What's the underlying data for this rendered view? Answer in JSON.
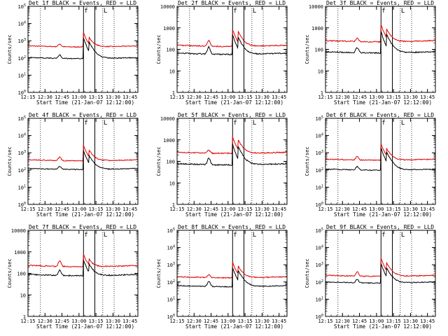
{
  "figure": {
    "shared_xlabel": "Start Time (21-Jan-07 12:12:00)",
    "ylabel": "Counts/sec",
    "colors": {
      "events": "#000000",
      "lld": "#e00000",
      "axes": "#000000",
      "background": "#ffffff"
    }
  },
  "chart_data": [
    {
      "type": "line",
      "title": "Det 1f BLACK = Events, RED = LLD",
      "xlabel": "Start Time (21-Jan-07 12:12:00)",
      "ylabel": "Counts/sec",
      "x_ticks": [
        "12:15",
        "12:30",
        "12:45",
        "13:00",
        "13:15",
        "13:30",
        "13:45"
      ],
      "xlim": [
        "12:15",
        "13:52"
      ],
      "yscale": "log",
      "ylim": [
        1,
        100000
      ],
      "y_tick_labels": [
        "10^0",
        "10^1",
        "10^2",
        "10^3",
        "10^4",
        "10^5"
      ],
      "y_tick_values": [
        1,
        10,
        100,
        1000,
        10000,
        100000
      ],
      "solid_vlines": [
        "13:04",
        "13:14"
      ],
      "dotted_vlines": [
        "12:26",
        "13:21",
        "13:31"
      ],
      "markers": {
        "f": "13:04",
        "L": "13:21"
      },
      "series": [
        {
          "color": "#e00000",
          "role": "LLD",
          "baseline": 450,
          "bump_1243": 650,
          "peak1": 3000,
          "peak2": 1300
        },
        {
          "color": "#000000",
          "role": "Events",
          "baseline": 95,
          "bump_1243": 150,
          "peak1": 1500,
          "peak2": 700
        }
      ]
    },
    {
      "type": "line",
      "title": "Det 2f BLACK = Events, RED = LLD",
      "xlabel": "Start Time (21-Jan-07 12:12:00)",
      "ylabel": "Counts/sec",
      "x_ticks": [
        "12:15",
        "12:30",
        "12:45",
        "13:00",
        "13:15",
        "13:30",
        "13:45"
      ],
      "xlim": [
        "12:15",
        "13:52"
      ],
      "yscale": "log",
      "ylim": [
        1,
        10000
      ],
      "y_tick_labels": [
        "1",
        "10",
        "100",
        "1000",
        "10000"
      ],
      "y_tick_values": [
        1,
        10,
        100,
        1000,
        10000
      ],
      "solid_vlines": [
        "13:04",
        "13:14"
      ],
      "dotted_vlines": [
        "12:26",
        "13:21",
        "13:31"
      ],
      "markers": {
        "f": "13:04",
        "L": "13:21"
      },
      "series": [
        {
          "color": "#e00000",
          "role": "LLD",
          "baseline": 140,
          "bump_1243": 260,
          "peak1": 900,
          "peak2": 600
        },
        {
          "color": "#000000",
          "role": "Events",
          "baseline": 60,
          "bump_1243": 130,
          "peak1": 500,
          "peak2": 330
        }
      ]
    },
    {
      "type": "line",
      "title": "Det 3f BLACK = Events, RED = LLD",
      "xlabel": "Start Time (21-Jan-07 12:12:00)",
      "ylabel": "Counts/sec",
      "x_ticks": [
        "12:15",
        "12:30",
        "12:45",
        "13:00",
        "13:15",
        "13:30",
        "13:45"
      ],
      "xlim": [
        "12:15",
        "13:52"
      ],
      "yscale": "log",
      "ylim": [
        1,
        10000
      ],
      "y_tick_labels": [
        "1",
        "10",
        "100",
        "1000",
        "10000"
      ],
      "y_tick_values": [
        1,
        10,
        100,
        1000,
        10000
      ],
      "solid_vlines": [
        "13:04",
        "13:14"
      ],
      "dotted_vlines": [
        "12:26",
        "13:21",
        "13:31"
      ],
      "markers": {
        "f": "13:04",
        "L": "13:21"
      },
      "series": [
        {
          "color": "#e00000",
          "role": "LLD",
          "baseline": 230,
          "bump_1243": 330,
          "peak1": 1500,
          "peak2": 800
        },
        {
          "color": "#000000",
          "role": "Events",
          "baseline": 70,
          "bump_1243": 120,
          "peak1": 700,
          "peak2": 450
        }
      ]
    },
    {
      "type": "line",
      "title": "Det 4f BLACK = Events, RED = LLD",
      "xlabel": "Start Time (21-Jan-07 12:12:00)",
      "ylabel": "Counts/sec",
      "x_ticks": [
        "12:15",
        "12:30",
        "12:45",
        "13:00",
        "13:15",
        "13:30",
        "13:45"
      ],
      "xlim": [
        "12:15",
        "13:52"
      ],
      "yscale": "log",
      "ylim": [
        1,
        100000
      ],
      "y_tick_labels": [
        "10^0",
        "10^1",
        "10^2",
        "10^3",
        "10^4",
        "10^5"
      ],
      "y_tick_values": [
        1,
        10,
        100,
        1000,
        10000,
        100000
      ],
      "solid_vlines": [
        "13:04",
        "13:14"
      ],
      "dotted_vlines": [
        "12:26",
        "13:21",
        "13:31"
      ],
      "markers": {
        "f": "13:04",
        "L": "13:21"
      },
      "series": [
        {
          "color": "#e00000",
          "role": "LLD",
          "baseline": 350,
          "bump_1243": 550,
          "peak1": 2800,
          "peak2": 1200
        },
        {
          "color": "#000000",
          "role": "Events",
          "baseline": 110,
          "bump_1243": 160,
          "peak1": 1400,
          "peak2": 600
        }
      ]
    },
    {
      "type": "line",
      "title": "Det 5f BLACK = Events, RED = LLD",
      "xlabel": "Start Time (21-Jan-07 12:12:00)",
      "ylabel": "Counts/sec",
      "x_ticks": [
        "12:15",
        "12:30",
        "12:45",
        "13:00",
        "13:15",
        "13:30",
        "13:45"
      ],
      "xlim": [
        "12:15",
        "13:52"
      ],
      "yscale": "log",
      "ylim": [
        1,
        10000
      ],
      "y_tick_labels": [
        "1",
        "10",
        "100",
        "1000",
        "10000"
      ],
      "y_tick_values": [
        1,
        10,
        100,
        1000,
        10000
      ],
      "solid_vlines": [
        "13:04",
        "13:14"
      ],
      "dotted_vlines": [
        "12:26",
        "13:21",
        "13:31"
      ],
      "markers": {
        "f": "13:04",
        "L": "13:21"
      },
      "series": [
        {
          "color": "#e00000",
          "role": "LLD",
          "baseline": 240,
          "bump_1243": 330,
          "peak1": 1500,
          "peak2": 900
        },
        {
          "color": "#000000",
          "role": "Events",
          "baseline": 70,
          "bump_1243": 140,
          "peak1": 650,
          "peak2": 450
        }
      ]
    },
    {
      "type": "line",
      "title": "Det 6f BLACK = Events, RED = LLD",
      "xlabel": "Start Time (21-Jan-07 12:12:00)",
      "ylabel": "Counts/sec",
      "x_ticks": [
        "12:15",
        "12:30",
        "12:45",
        "13:00",
        "13:15",
        "13:30",
        "13:45"
      ],
      "xlim": [
        "12:15",
        "13:52"
      ],
      "yscale": "log",
      "ylim": [
        1,
        100000
      ],
      "y_tick_labels": [
        "10^0",
        "10^1",
        "10^2",
        "10^3",
        "10^4",
        "10^5"
      ],
      "y_tick_values": [
        1,
        10,
        100,
        1000,
        10000,
        100000
      ],
      "solid_vlines": [
        "13:04",
        "13:14"
      ],
      "dotted_vlines": [
        "12:26",
        "13:21",
        "13:31"
      ],
      "markers": {
        "f": "13:04",
        "L": "13:21"
      },
      "series": [
        {
          "color": "#e00000",
          "role": "LLD",
          "baseline": 380,
          "bump_1243": 600,
          "peak1": 3500,
          "peak2": 1500
        },
        {
          "color": "#000000",
          "role": "Events",
          "baseline": 100,
          "bump_1243": 160,
          "peak1": 2000,
          "peak2": 900
        }
      ]
    },
    {
      "type": "line",
      "title": "Det 7f BLACK = Events, RED = LLD",
      "xlabel": "Start Time (21-Jan-07 12:12:00)",
      "ylabel": "Counts/sec",
      "x_ticks": [
        "12:15",
        "12:30",
        "12:45",
        "13:00",
        "13:15",
        "13:30",
        "13:45"
      ],
      "xlim": [
        "12:15",
        "13:52"
      ],
      "yscale": "log",
      "ylim": [
        1,
        10000
      ],
      "y_tick_labels": [
        "1",
        "10",
        "100",
        "1000",
        "10000"
      ],
      "y_tick_values": [
        1,
        10,
        100,
        1000,
        10000
      ],
      "solid_vlines": [
        "13:04",
        "13:14"
      ],
      "dotted_vlines": [
        "12:26",
        "13:21",
        "13:31"
      ],
      "markers": {
        "f": "13:04",
        "L": "13:21"
      },
      "series": [
        {
          "color": "#e00000",
          "role": "LLD",
          "baseline": 210,
          "bump_1243": 380,
          "peak1": 800,
          "peak2": 400
        },
        {
          "color": "#000000",
          "role": "Events",
          "baseline": 80,
          "bump_1243": 140,
          "peak1": 450,
          "peak2": 250
        }
      ]
    },
    {
      "type": "line",
      "title": "Det 8f BLACK = Events, RED = LLD",
      "xlabel": "Start Time (21-Jan-07 12:12:00)",
      "ylabel": "Counts/sec",
      "x_ticks": [
        "12:15",
        "12:30",
        "12:45",
        "13:00",
        "13:15",
        "13:30",
        "13:45"
      ],
      "xlim": [
        "12:15",
        "13:52"
      ],
      "yscale": "log",
      "ylim": [
        1,
        100000
      ],
      "y_tick_labels": [
        "10^0",
        "10^1",
        "10^2",
        "10^3",
        "10^4",
        "10^5"
      ],
      "y_tick_values": [
        1,
        10,
        100,
        1000,
        10000,
        100000
      ],
      "solid_vlines": [
        "13:04",
        "13:14"
      ],
      "dotted_vlines": [
        "12:26",
        "13:21",
        "13:31"
      ],
      "markers": {
        "f": "13:04",
        "L": "13:21"
      },
      "series": [
        {
          "color": "#e00000",
          "role": "LLD",
          "baseline": 180,
          "bump_1243": 260,
          "peak1": 1400,
          "peak2": 700
        },
        {
          "color": "#000000",
          "role": "Events",
          "baseline": 55,
          "bump_1243": 110,
          "peak1": 700,
          "peak2": 400
        }
      ]
    },
    {
      "type": "line",
      "title": "Det 9f BLACK = Events, RED = LLD",
      "xlabel": "Start Time (21-Jan-07 12:12:00)",
      "ylabel": "Counts/sec",
      "x_ticks": [
        "12:15",
        "12:30",
        "12:45",
        "13:00",
        "13:15",
        "13:30",
        "13:45"
      ],
      "xlim": [
        "12:15",
        "13:52"
      ],
      "yscale": "log",
      "ylim": [
        1,
        100000
      ],
      "y_tick_labels": [
        "10^0",
        "10^1",
        "10^2",
        "10^3",
        "10^4",
        "10^5"
      ],
      "y_tick_values": [
        1,
        10,
        100,
        1000,
        10000,
        100000
      ],
      "solid_vlines": [
        "13:04",
        "13:14"
      ],
      "dotted_vlines": [
        "12:26",
        "13:21",
        "13:31"
      ],
      "markers": {
        "f": "13:04",
        "L": "13:21"
      },
      "series": [
        {
          "color": "#e00000",
          "role": "LLD",
          "baseline": 220,
          "bump_1243": 380,
          "peak1": 2500,
          "peak2": 1100
        },
        {
          "color": "#000000",
          "role": "Events",
          "baseline": 90,
          "bump_1243": 140,
          "peak1": 1200,
          "peak2": 550
        }
      ]
    }
  ]
}
